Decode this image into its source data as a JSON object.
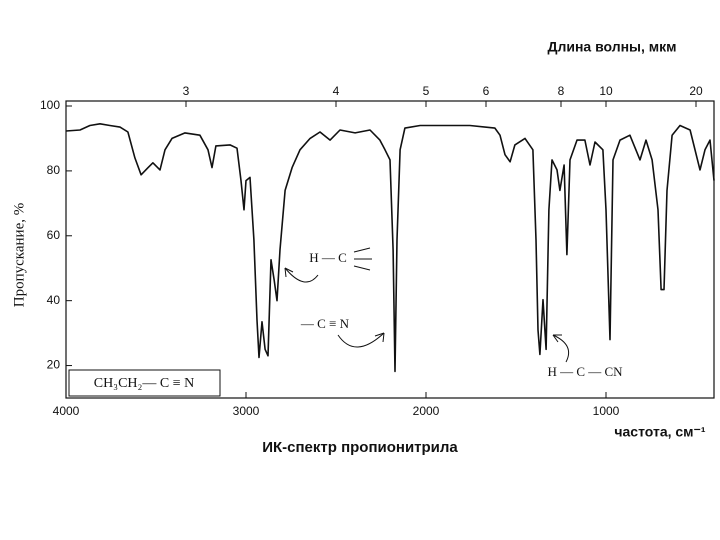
{
  "chart_data": {
    "type": "line",
    "title": "ИК-спектр пропионитрила",
    "x_label": "частота, см⁻¹",
    "y_label": "Пропускание, %",
    "x2_label": "Длина волны, мкм",
    "color": "#111111",
    "xlim": [
      4000,
      400
    ],
    "xticks": [
      4000,
      3000,
      2000,
      1000
    ],
    "ylim": [
      10,
      100
    ],
    "yticks": [
      20,
      40,
      60,
      80,
      100
    ],
    "x2lim": [
      2.5,
      25
    ],
    "x2scale": "reciprocal",
    "x2ticks": [
      3,
      4,
      5,
      6,
      8,
      10,
      20
    ],
    "annotations": [
      "CH₃CH₂— C ≡ N",
      "H — C",
      "— C ≡ N",
      "H — C — CN"
    ],
    "x": [
      4000,
      3922,
      3867,
      3811,
      3756,
      3700,
      3656,
      3617,
      3583,
      3544,
      3517,
      3478,
      3450,
      3411,
      3339,
      3256,
      3211,
      3189,
      3167,
      3089,
      3050,
      3028,
      3011,
      3000,
      2978,
      2956,
      2939,
      2928,
      2911,
      2894,
      2878,
      2861,
      2844,
      2828,
      2811,
      2783,
      2744,
      2700,
      2644,
      2589,
      2533,
      2478,
      2394,
      2311,
      2256,
      2228,
      2200,
      2183,
      2172,
      2161,
      2144,
      2117,
      2033,
      1922,
      1756,
      1617,
      1589,
      1561,
      1533,
      1506,
      1450,
      1406,
      1389,
      1378,
      1367,
      1350,
      1333,
      1317,
      1300,
      1272,
      1256,
      1233,
      1217,
      1200,
      1161,
      1117,
      1089,
      1061,
      1017,
      1000,
      978,
      961,
      922,
      867,
      811,
      778,
      744,
      711,
      694,
      678,
      661,
      633,
      589,
      533,
      478,
      450,
      422,
      400
    ],
    "values": [
      92.3,
      92.6,
      94,
      94.5,
      94,
      93.5,
      92,
      84,
      78.8,
      81,
      82.5,
      80.3,
      86.5,
      90,
      91.7,
      91,
      86.5,
      81,
      87.7,
      88,
      87,
      77,
      68,
      77,
      78,
      58.8,
      34,
      22.5,
      33.5,
      25,
      23,
      52.6,
      46.5,
      40,
      55.7,
      74,
      81,
      86.5,
      90,
      92,
      89.5,
      92.6,
      91.7,
      92.6,
      89.5,
      86.5,
      83.4,
      55.7,
      18.2,
      58.8,
      86.5,
      93.2,
      94,
      94,
      94,
      93.2,
      91,
      85,
      82.8,
      88,
      90,
      86.5,
      58.8,
      31,
      23.4,
      40.3,
      25,
      68,
      83.4,
      80.3,
      74,
      81.8,
      54.2,
      83.4,
      89.5,
      89.5,
      81.8,
      88.9,
      86.5,
      68,
      28,
      83.4,
      89.5,
      91,
      83.4,
      89.5,
      83.4,
      68,
      43.4,
      43.4,
      74,
      91,
      94,
      92.6,
      80.3,
      86.5,
      89.5,
      77
    ]
  }
}
